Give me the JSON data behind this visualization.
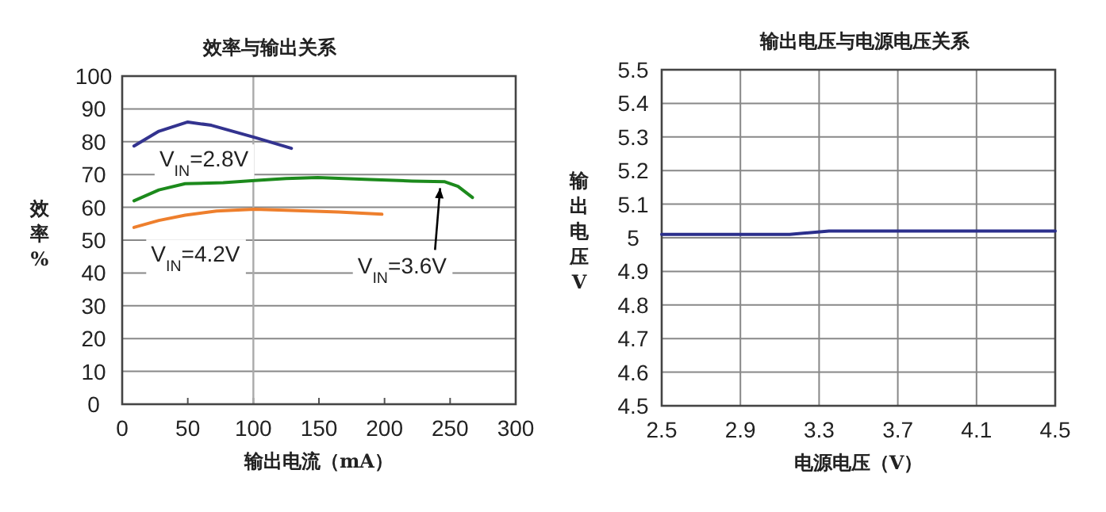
{
  "chart_data": [
    {
      "type": "line",
      "title": "效率与输出关系",
      "xlabel": "输出电流（mA）",
      "ylabel": "效率%",
      "xlim": [
        0,
        300
      ],
      "xticks": [
        0,
        50,
        100,
        150,
        200,
        250,
        300
      ],
      "ylim": [
        0,
        100
      ],
      "yticks": [
        0,
        10,
        20,
        30,
        40,
        50,
        60,
        70,
        80,
        90,
        100
      ],
      "grid": "y",
      "ref_lines": [
        {
          "axis": "x",
          "value": 100,
          "color": "#aaaaaa"
        }
      ],
      "series": [
        {
          "name": "V$_{IN}$=2.8V",
          "color": "#33338f",
          "x": [
            9,
            28,
            50,
            68,
            101,
            129
          ],
          "values": [
            78.7,
            83.2,
            86,
            85,
            81.3,
            78
          ]
        },
        {
          "name": "V$_{IN}$=3.6V",
          "color": "#1c8a1c",
          "x": [
            9,
            28,
            48,
            77,
            101,
            125,
            149,
            189,
            221,
            246,
            256,
            267
          ],
          "values": [
            62,
            65.3,
            67.2,
            67.5,
            68.2,
            68.8,
            69.1,
            68.5,
            68,
            67.8,
            66.4,
            63
          ]
        },
        {
          "name": "V$_{IN}$=4.2V",
          "color": "#ee7f2d",
          "x": [
            9,
            28,
            48,
            72,
            101,
            133,
            165,
            198
          ],
          "values": [
            53.9,
            56,
            57.6,
            58.9,
            59.4,
            59,
            58.6,
            57.9
          ]
        }
      ]
    },
    {
      "type": "line",
      "title": "输出电压与电源电压关系",
      "xlabel": "电源电压（V）",
      "ylabel": "输出电压V",
      "xlim": [
        2.5,
        4.5
      ],
      "xticks": [
        2.5,
        2.9,
        3.3,
        3.7,
        4.1,
        4.5
      ],
      "ylim": [
        4.5,
        5.5
      ],
      "yticks": [
        4.5,
        4.6,
        4.7,
        4.8,
        4.9,
        5,
        5.1,
        5.2,
        5.3,
        5.4,
        5.5
      ],
      "grid": true,
      "series": [
        {
          "color": "#2b2f8c",
          "x": [
            2.5,
            2.9,
            3.15,
            3.35,
            3.7,
            4.1,
            4.5
          ],
          "values": [
            5.01,
            5.01,
            5.01,
            5.02,
            5.02,
            5.02,
            5.02
          ]
        }
      ]
    }
  ]
}
